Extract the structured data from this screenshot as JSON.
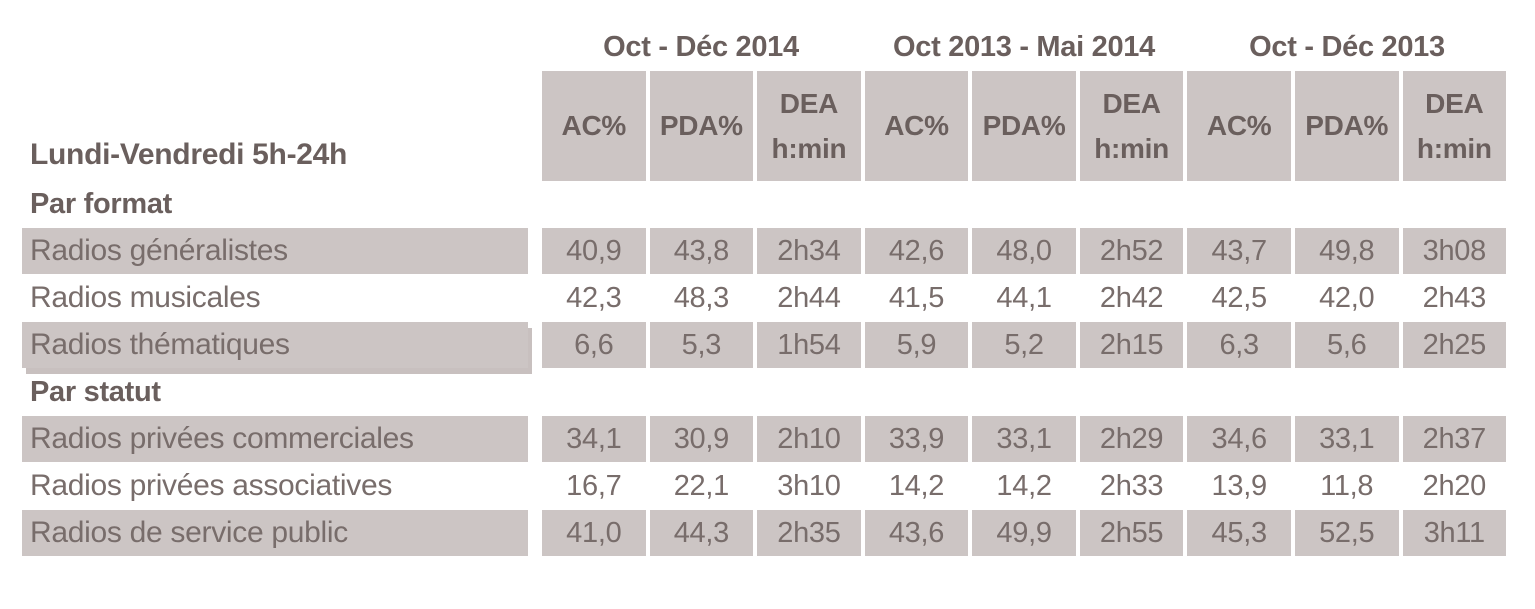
{
  "chart_data": {
    "type": "table",
    "title": "Lundi-Vendredi 5h-24h",
    "periods": [
      "Oct - Déc 2014",
      "Oct 2013 - Mai 2014",
      "Oct - Déc 2013"
    ],
    "measures": [
      {
        "label": "AC%"
      },
      {
        "label": "PDA%"
      },
      {
        "label": "DEA",
        "sublabel": "h:min"
      }
    ],
    "sections": [
      {
        "title": "Par format",
        "rows": [
          {
            "label": "Radios généralistes",
            "values": [
              "40,9",
              "43,8",
              "2h34",
              "42,6",
              "48,0",
              "2h52",
              "43,7",
              "49,8",
              "3h08"
            ]
          },
          {
            "label": "Radios musicales",
            "values": [
              "42,3",
              "48,3",
              "2h44",
              "41,5",
              "44,1",
              "2h42",
              "42,5",
              "42,0",
              "2h43"
            ]
          },
          {
            "label": "Radios thématiques",
            "values": [
              "6,6",
              "5,3",
              "1h54",
              "5,9",
              "5,2",
              "2h15",
              "6,3",
              "5,6",
              "2h25"
            ]
          }
        ]
      },
      {
        "title": "Par statut",
        "rows": [
          {
            "label": "Radios privées commerciales",
            "values": [
              "34,1",
              "30,9",
              "2h10",
              "33,9",
              "33,1",
              "2h29",
              "34,6",
              "33,1",
              "2h37"
            ]
          },
          {
            "label": "Radios privées associatives",
            "values": [
              "16,7",
              "22,1",
              "3h10",
              "14,2",
              "14,2",
              "2h33",
              "13,9",
              "11,8",
              "2h20"
            ]
          },
          {
            "label": "Radios de service public",
            "values": [
              "41,0",
              "44,3",
              "2h35",
              "43,6",
              "49,9",
              "2h55",
              "45,3",
              "52,5",
              "3h11"
            ]
          }
        ]
      }
    ],
    "layout_hints": {
      "striping": "rows 1 and 3 of each section shaded, row 2 white",
      "legend_position": "none",
      "grid": "off"
    }
  },
  "colors": {
    "cell_fill": "#ccc5c4",
    "heading_text": "#6a5f5d",
    "body_text": "#786d6b",
    "row_shadow": "#c8c0bf",
    "background": "#ffffff"
  }
}
